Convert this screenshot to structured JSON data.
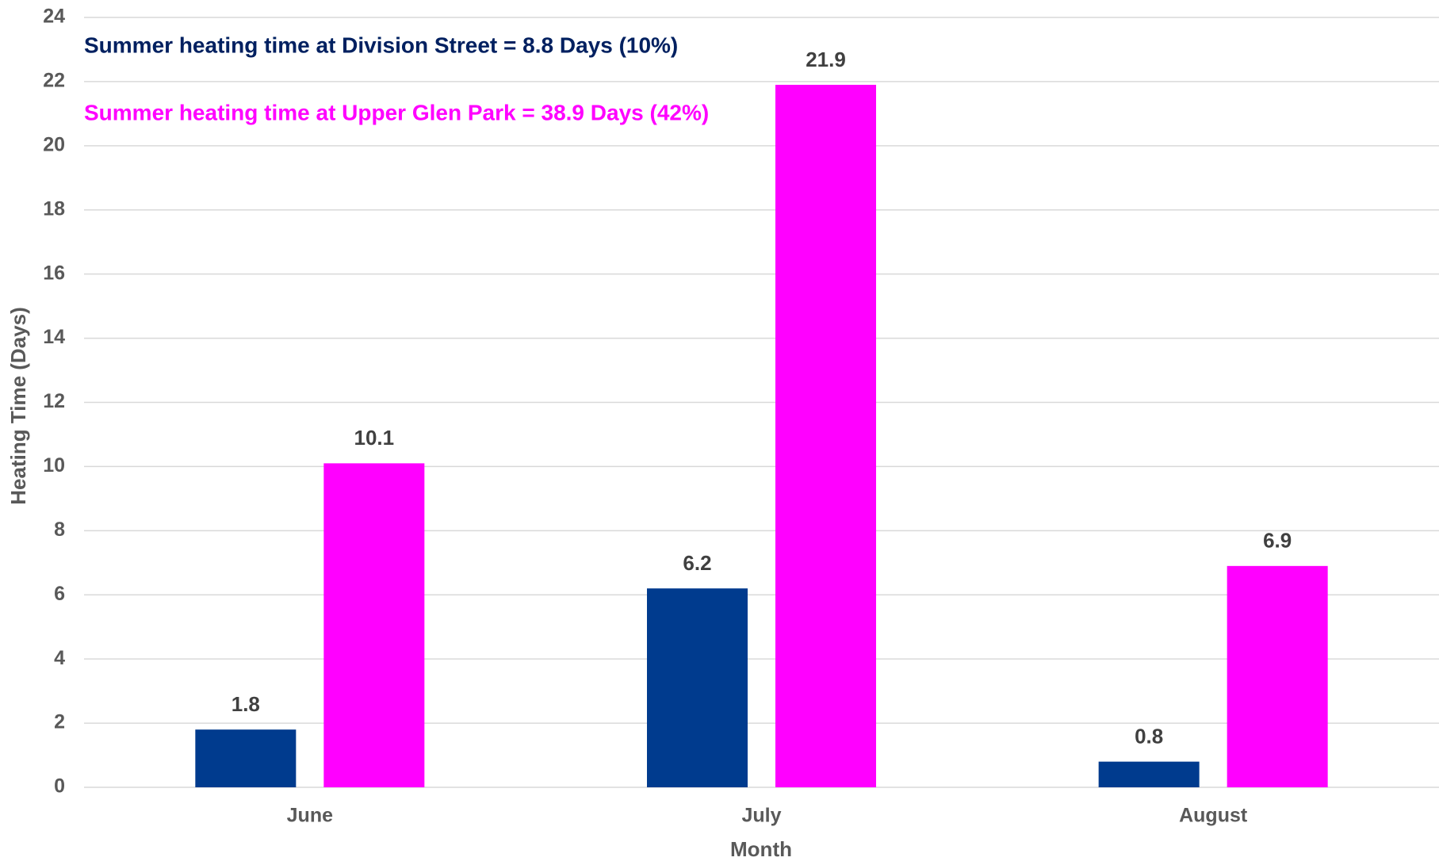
{
  "chart_data": {
    "type": "bar",
    "categories": [
      "June",
      "July",
      "August"
    ],
    "series": [
      {
        "color": "#003b8e",
        "values": [
          1.8,
          6.2,
          0.8
        ]
      },
      {
        "color": "#ff00ff",
        "values": [
          10.1,
          21.9,
          6.9
        ]
      }
    ],
    "xlabel": "Month",
    "ylabel": "Heating Time (Days)",
    "ylim": [
      0,
      24
    ],
    "yticks": [
      0,
      2,
      4,
      6,
      8,
      10,
      12,
      14,
      16,
      18,
      20,
      22,
      24
    ],
    "grid": true,
    "annotations": [
      {
        "text": "Summer  heating time at Division Street = 8.8 Days (10%)",
        "color": "#002060"
      },
      {
        "text": "Summer  heating time at Upper Glen Park = 38.9 Days (42%)",
        "color": "#ff00ff"
      }
    ]
  }
}
